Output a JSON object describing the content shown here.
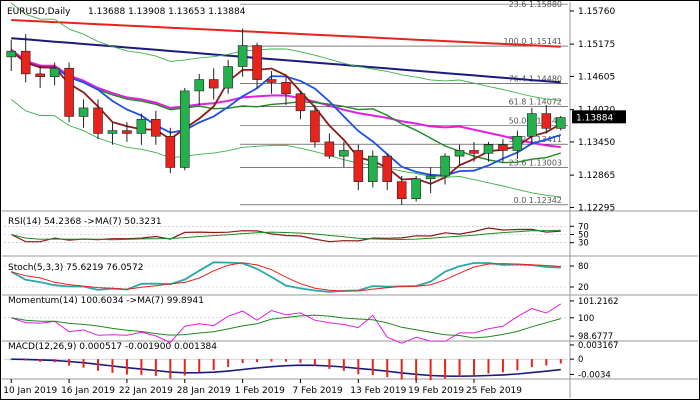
{
  "header": {
    "symbol": "EURUSD,Daily",
    "ohlc": "1.13688 1.13908 1.13653 1.13884"
  },
  "panels": {
    "rsi": "RSI(14) 54.2368  ->MA(7) 50.3231",
    "stoch": "Stoch(5,3,3) 75.6219 76.0572",
    "momentum": "Momentum(14) 100.6034  ->MA(7) 99.8941",
    "macd": "MACD(12,26,9) 0.000517 -0.001900 0.001384"
  },
  "colors": {
    "bull": "#22b14c",
    "bear": "#e8231c",
    "ma_red": "#e8231c",
    "ma_navy": "#1a1a80",
    "ma_blue": "#1e50e6",
    "ma_maroon": "#8b1a1a",
    "ma_green": "#1f8a1f",
    "ma_magenta": "#e020e0",
    "ma_pink": "#e8a0e8",
    "band": "#3cb34a",
    "price_box": "#000000"
  },
  "chart_data": {
    "type": "candlestick",
    "price": {
      "ylim": [
        1.1225,
        1.159
      ],
      "yticks": [
        "1.15760",
        "1.15175",
        "1.14605",
        "1.14020",
        "1.13884",
        "1.13450",
        "1.12865",
        "1.12295"
      ],
      "ytick_values": [
        1.1576,
        1.15175,
        1.14605,
        1.1402,
        1.13884,
        1.1345,
        1.12865,
        1.12295
      ],
      "current_price": "1.13884",
      "current_value": 1.13884,
      "fib_levels": [
        {
          "label": "23.6 1.15880",
          "value": 1.1588
        },
        {
          "label": "100.0 1.15141",
          "value": 1.15141
        },
        {
          "label": "76.4 1.14480",
          "value": 1.1448
        },
        {
          "label": "61.8 1.14072",
          "value": 1.14072
        },
        {
          "label": "50.0 1.13742",
          "value": 1.13742
        },
        {
          "label": "38.2 1.13411",
          "value": 1.13411
        },
        {
          "label": "23.6 1.13003",
          "value": 1.13003
        },
        {
          "label": "0.0 1.12342",
          "value": 1.12342
        }
      ],
      "candles": [
        [
          1.1495,
          1.1525,
          1.147,
          1.1505
        ],
        [
          1.1505,
          1.1535,
          1.145,
          1.1465
        ],
        [
          1.1465,
          1.148,
          1.144,
          1.146
        ],
        [
          1.146,
          1.1485,
          1.1445,
          1.1475
        ],
        [
          1.1475,
          1.1485,
          1.138,
          1.139
        ],
        [
          1.139,
          1.142,
          1.137,
          1.1405
        ],
        [
          1.1405,
          1.142,
          1.135,
          1.136
        ],
        [
          1.136,
          1.138,
          1.134,
          1.1365
        ],
        [
          1.1365,
          1.138,
          1.1345,
          1.136
        ],
        [
          1.136,
          1.1395,
          1.134,
          1.1385
        ],
        [
          1.1385,
          1.14,
          1.134,
          1.1355
        ],
        [
          1.1355,
          1.137,
          1.129,
          1.13
        ],
        [
          1.13,
          1.144,
          1.1295,
          1.1435
        ],
        [
          1.1435,
          1.1465,
          1.141,
          1.1455
        ],
        [
          1.1455,
          1.1475,
          1.142,
          1.144
        ],
        [
          1.144,
          1.149,
          1.143,
          1.1478
        ],
        [
          1.1478,
          1.1545,
          1.146,
          1.1515
        ],
        [
          1.1515,
          1.152,
          1.144,
          1.1455
        ],
        [
          1.1455,
          1.147,
          1.143,
          1.145
        ],
        [
          1.145,
          1.146,
          1.141,
          1.143
        ],
        [
          1.143,
          1.1435,
          1.1385,
          1.14
        ],
        [
          1.14,
          1.141,
          1.1335,
          1.1345
        ],
        [
          1.1345,
          1.136,
          1.1315,
          1.132
        ],
        [
          1.132,
          1.1345,
          1.13,
          1.133
        ],
        [
          1.133,
          1.134,
          1.126,
          1.1275
        ],
        [
          1.1275,
          1.133,
          1.1265,
          1.132
        ],
        [
          1.132,
          1.1325,
          1.126,
          1.1275
        ],
        [
          1.1275,
          1.1285,
          1.1234,
          1.1245
        ],
        [
          1.1245,
          1.1285,
          1.124,
          1.128
        ],
        [
          1.128,
          1.13,
          1.1255,
          1.1285
        ],
        [
          1.1285,
          1.1325,
          1.127,
          1.132
        ],
        [
          1.132,
          1.134,
          1.1305,
          1.133
        ],
        [
          1.133,
          1.1345,
          1.131,
          1.1325
        ],
        [
          1.1325,
          1.1345,
          1.131,
          1.134
        ],
        [
          1.134,
          1.135,
          1.131,
          1.133
        ],
        [
          1.133,
          1.1365,
          1.1315,
          1.1355
        ],
        [
          1.1355,
          1.1405,
          1.134,
          1.1395
        ],
        [
          1.1395,
          1.141,
          1.136,
          1.1369
        ],
        [
          1.1369,
          1.1391,
          1.1365,
          1.1388
        ]
      ]
    },
    "x_labels": [
      "10 Jan 2019",
      "16 Jan 2019",
      "22 Jan 2019",
      "28 Jan 2019",
      "1 Feb 2019",
      "7 Feb 2019",
      "13 Feb 2019",
      "19 Feb 2019",
      "25 Feb 2019"
    ],
    "x_label_index": [
      0,
      4,
      8,
      12,
      16,
      20,
      24,
      28,
      32
    ],
    "rsi": {
      "yticks": [
        "70",
        "50",
        "30"
      ],
      "ytick_values": [
        70,
        50,
        30
      ],
      "ylim": [
        0,
        100
      ]
    },
    "stoch": {
      "yticks": [
        "80",
        "20"
      ],
      "ytick_values": [
        80,
        20
      ],
      "ylim": [
        0,
        100
      ]
    },
    "momentum": {
      "yticks": [
        "101.2162",
        "100",
        "98.6777"
      ],
      "ytick_values": [
        101.2162,
        100,
        98.6777
      ],
      "ylim": [
        98.4,
        101.5
      ]
    },
    "macd": {
      "yticks": [
        "0.003167",
        "0",
        "-0.0034"
      ],
      "ytick_values": [
        0.003167,
        0,
        -0.0034
      ],
      "ylim": [
        -0.0042,
        0.0036
      ]
    }
  }
}
